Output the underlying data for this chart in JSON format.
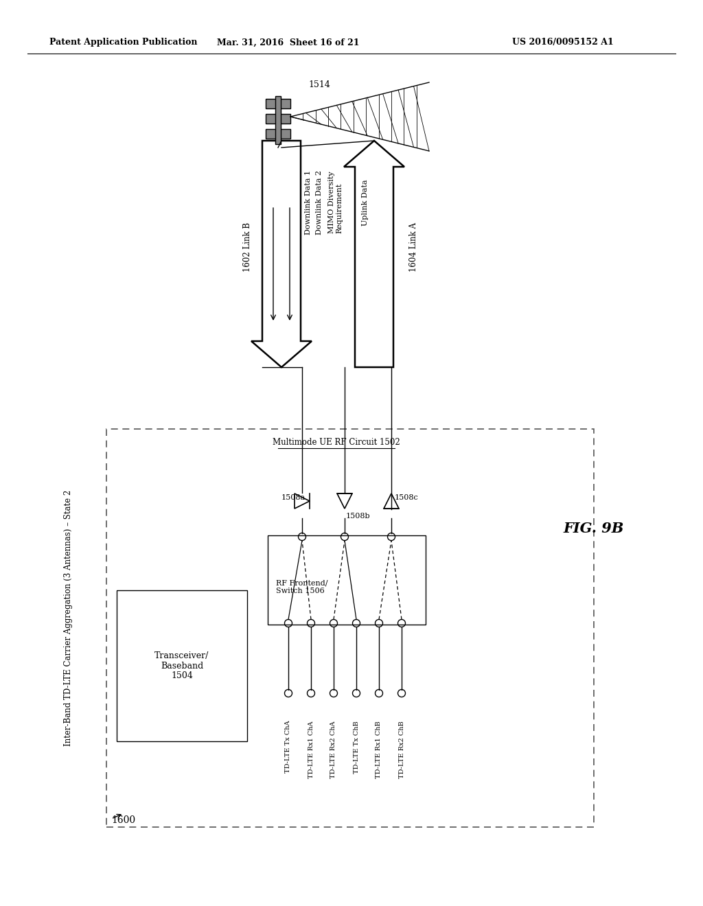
{
  "bg_color": "#ffffff",
  "header_left": "Patent Application Publication",
  "header_mid": "Mar. 31, 2016  Sheet 16 of 21",
  "header_right": "US 2016/0095152 A1",
  "fig_label": "FIG. 9B",
  "diagram_label": "1600",
  "outer_box_label": "Inter-Band TD-LTE Carrier Aggregation (3 Antennas) – State 2",
  "outer_box_label2": "Multimode UE RF Circuit 1502",
  "transceiver_label": "Transceiver/\nBaseband\n1504",
  "rf_switch_label": "RF Frontend/\nSwitch 1506",
  "channel_labels": [
    "TD-LTE Tx ChA",
    "TD-LTE Rx1 ChA",
    "TD-LTE Rx2 ChA",
    "TD-LTE Tx ChB",
    "TD-LTE Rx1 ChB",
    "TD-LTE Rx2 ChB"
  ],
  "antenna_label_1508a": "1508a",
  "antenna_label_1508b": "1508b",
  "antenna_label_1508c": "1508c",
  "link_b_label": "1602 Link B",
  "link_a_label": "1604 Link A",
  "tower_label": "1514",
  "dl_data1": "Downlink Data 1",
  "dl_data2": "Downlink Data 2",
  "mimo_label": "MIMO Diversity\nRequirement",
  "ul_data": "Uplink Data"
}
